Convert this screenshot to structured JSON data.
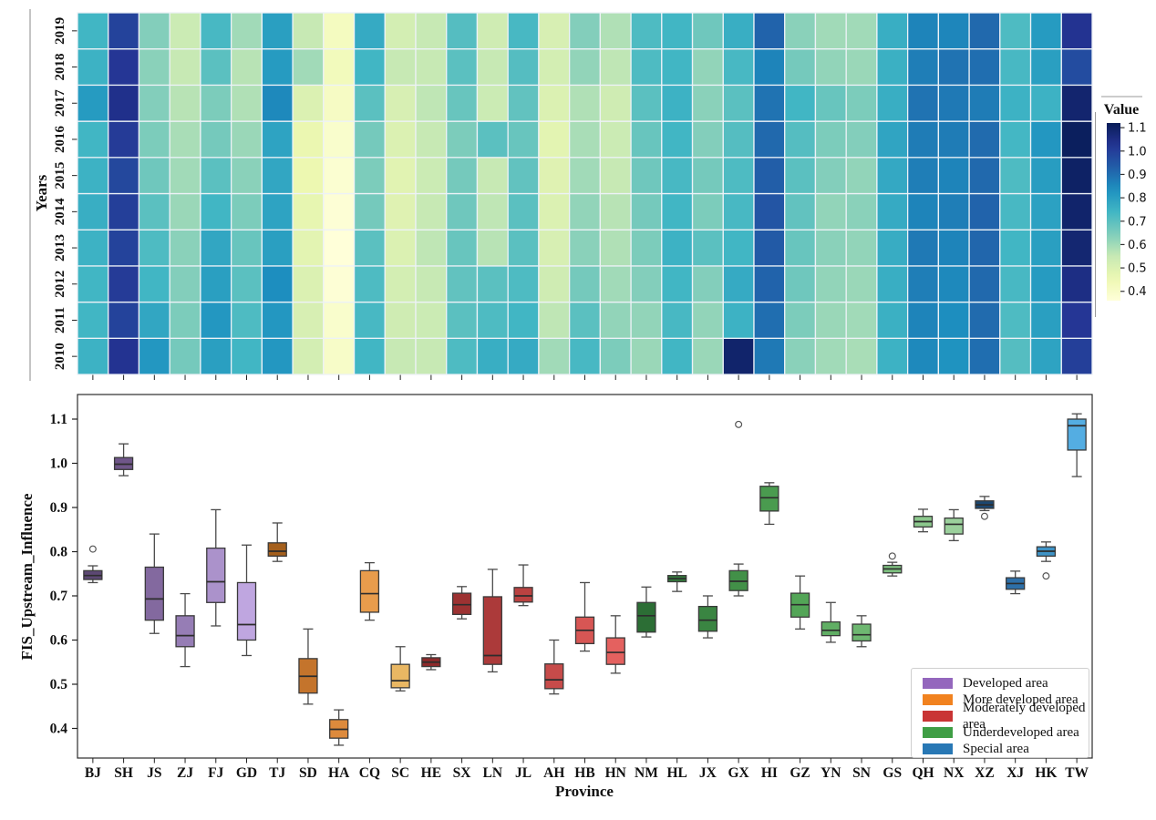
{
  "chart_data": [
    {
      "type": "heatmap",
      "ylabel": "Years",
      "years": [
        "2010",
        "2011",
        "2012",
        "2013",
        "2014",
        "2015",
        "2016",
        "2017",
        "2018",
        "2019"
      ],
      "columns": [
        "BJ",
        "SH",
        "JS",
        "ZJ",
        "FJ",
        "GD",
        "TJ",
        "SD",
        "HA",
        "CQ",
        "SC",
        "HE",
        "SX",
        "LN",
        "JL",
        "AH",
        "HB",
        "HN",
        "NM",
        "HL",
        "JX",
        "GX",
        "HI",
        "GZ",
        "YN",
        "SN",
        "GS",
        "QH",
        "NX",
        "XZ",
        "XJ",
        "HK",
        "TW"
      ],
      "colorbar": {
        "title": "Value",
        "ticks": [
          1.1,
          1.0,
          0.9,
          0.8,
          0.7,
          0.6,
          0.5,
          0.4
        ],
        "vmin": 0.36,
        "vmax": 1.12,
        "colormap": "YlGnBu",
        "anchors": [
          [
            0,
            "#ffffd9"
          ],
          [
            0.125,
            "#edf8b1"
          ],
          [
            0.25,
            "#c7e9b4"
          ],
          [
            0.375,
            "#7fcdbb"
          ],
          [
            0.5,
            "#41b6c4"
          ],
          [
            0.625,
            "#1d91c0"
          ],
          [
            0.75,
            "#225ea8"
          ],
          [
            0.875,
            "#253494"
          ],
          [
            1,
            "#081d58"
          ]
        ]
      },
      "values_by_province": [
        [
          0.75,
          0.74,
          0.74,
          0.75,
          0.76,
          0.75,
          0.74,
          0.81,
          0.75,
          0.74
        ],
        [
          1.03,
          0.99,
          1.01,
          0.99,
          1.0,
          0.98,
          1.01,
          1.04,
          1.02,
          0.99
        ],
        [
          0.82,
          0.78,
          0.74,
          0.72,
          0.7,
          0.67,
          0.65,
          0.64,
          0.63,
          0.64
        ],
        [
          0.66,
          0.65,
          0.64,
          0.63,
          0.61,
          0.6,
          0.59,
          0.57,
          0.55,
          0.54
        ],
        [
          0.8,
          0.82,
          0.8,
          0.78,
          0.74,
          0.7,
          0.66,
          0.65,
          0.7,
          0.73
        ],
        [
          0.74,
          0.72,
          0.7,
          0.68,
          0.65,
          0.63,
          0.61,
          0.58,
          0.57,
          0.6
        ],
        [
          0.82,
          0.82,
          0.84,
          0.8,
          0.79,
          0.78,
          0.79,
          0.85,
          0.81,
          0.8
        ],
        [
          0.52,
          0.51,
          0.5,
          0.48,
          0.47,
          0.455,
          0.46,
          0.5,
          0.6,
          0.55
        ],
        [
          0.4,
          0.39,
          0.37,
          0.36,
          0.37,
          0.38,
          0.39,
          0.41,
          0.43,
          0.42
        ],
        [
          0.74,
          0.73,
          0.72,
          0.7,
          0.66,
          0.65,
          0.66,
          0.7,
          0.74,
          0.77
        ],
        [
          0.55,
          0.53,
          0.52,
          0.5,
          0.49,
          0.485,
          0.5,
          0.51,
          0.55,
          0.52
        ],
        [
          0.55,
          0.54,
          0.55,
          0.56,
          0.55,
          0.54,
          0.55,
          0.56,
          0.55,
          0.55
        ],
        [
          0.72,
          0.7,
          0.69,
          0.68,
          0.67,
          0.66,
          0.65,
          0.68,
          0.7,
          0.71
        ],
        [
          0.76,
          0.72,
          0.7,
          0.57,
          0.56,
          0.55,
          0.7,
          0.54,
          0.55,
          0.53
        ],
        [
          0.77,
          0.74,
          0.72,
          0.7,
          0.7,
          0.69,
          0.68,
          0.69,
          0.71,
          0.73
        ],
        [
          0.6,
          0.56,
          0.53,
          0.51,
          0.5,
          0.49,
          0.48,
          0.5,
          0.52,
          0.51
        ],
        [
          0.73,
          0.7,
          0.66,
          0.63,
          0.62,
          0.6,
          0.59,
          0.58,
          0.62,
          0.64
        ],
        [
          0.65,
          0.62,
          0.6,
          0.58,
          0.57,
          0.55,
          0.54,
          0.53,
          0.56,
          0.58
        ],
        [
          0.61,
          0.62,
          0.64,
          0.65,
          0.66,
          0.67,
          0.68,
          0.7,
          0.72,
          0.72
        ],
        [
          0.74,
          0.73,
          0.74,
          0.75,
          0.74,
          0.73,
          0.74,
          0.75,
          0.74,
          0.74
        ],
        [
          0.61,
          0.62,
          0.64,
          0.7,
          0.65,
          0.66,
          0.64,
          0.63,
          0.62,
          0.67
        ],
        [
          1.09,
          0.75,
          0.77,
          0.74,
          0.73,
          0.72,
          0.71,
          0.7,
          0.73,
          0.76
        ],
        [
          0.88,
          0.9,
          0.92,
          0.94,
          0.95,
          0.93,
          0.91,
          0.89,
          0.86,
          0.92
        ],
        [
          0.63,
          0.65,
          0.67,
          0.68,
          0.69,
          0.7,
          0.71,
          0.74,
          0.66,
          0.63
        ],
        [
          0.6,
          0.61,
          0.62,
          0.63,
          0.62,
          0.64,
          0.65,
          0.68,
          0.62,
          0.6
        ],
        [
          0.59,
          0.6,
          0.61,
          0.62,
          0.63,
          0.62,
          0.64,
          0.65,
          0.61,
          0.6
        ],
        [
          0.75,
          0.755,
          0.76,
          0.765,
          0.77,
          0.775,
          0.785,
          0.76,
          0.755,
          0.76
        ],
        [
          0.85,
          0.86,
          0.87,
          0.88,
          0.86,
          0.87,
          0.875,
          0.89,
          0.87,
          0.86
        ],
        [
          0.83,
          0.84,
          0.85,
          0.86,
          0.87,
          0.86,
          0.875,
          0.88,
          0.89,
          0.855
        ],
        [
          0.9,
          0.905,
          0.91,
          0.915,
          0.92,
          0.91,
          0.905,
          0.875,
          0.9,
          0.91
        ],
        [
          0.71,
          0.72,
          0.73,
          0.74,
          0.73,
          0.72,
          0.735,
          0.75,
          0.73,
          0.72
        ],
        [
          0.79,
          0.8,
          0.81,
          0.8,
          0.795,
          0.805,
          0.82,
          0.75,
          0.8,
          0.81
        ],
        [
          1.0,
          1.02,
          1.05,
          1.08,
          1.09,
          1.1,
          1.11,
          1.085,
          0.97,
          1.03
        ]
      ]
    },
    {
      "type": "box",
      "xlabel": "Province",
      "ylabel": "FIS_Upstream_Influence",
      "yticks": [
        0.4,
        0.5,
        0.6,
        0.7,
        0.8,
        0.9,
        1.0,
        1.1
      ],
      "ylim": [
        0.33,
        1.16
      ],
      "categories": [
        "BJ",
        "SH",
        "JS",
        "ZJ",
        "FJ",
        "GD",
        "TJ",
        "SD",
        "HA",
        "CQ",
        "SC",
        "HE",
        "SX",
        "LN",
        "JL",
        "AH",
        "HB",
        "HN",
        "NM",
        "HL",
        "JX",
        "GX",
        "HI",
        "GZ",
        "YN",
        "SN",
        "GS",
        "QH",
        "NX",
        "XZ",
        "XJ",
        "HK",
        "TW"
      ],
      "legend": [
        {
          "label": "Developed area",
          "color": "#9467bd"
        },
        {
          "label": "More developed area",
          "color": "#f1821f"
        },
        {
          "label": "Moderately developed area",
          "color": "#c93434"
        },
        {
          "label": "Underdeveloped area",
          "color": "#3f9e45"
        },
        {
          "label": "Special area",
          "color": "#2878b5"
        }
      ],
      "boxes": [
        {
          "code": "BJ",
          "group": "Developed area",
          "color": "#5c4873",
          "low": 0.73,
          "q1": 0.737,
          "median": 0.746,
          "q3": 0.757,
          "high": 0.768,
          "outliers": [
            0.806
          ]
        },
        {
          "code": "SH",
          "group": "Developed area",
          "color": "#6f5689",
          "low": 0.972,
          "q1": 0.986,
          "median": 0.998,
          "q3": 1.013,
          "high": 1.044,
          "outliers": []
        },
        {
          "code": "JS",
          "group": "Developed area",
          "color": "#83699f",
          "low": 0.615,
          "q1": 0.645,
          "median": 0.693,
          "q3": 0.765,
          "high": 0.84,
          "outliers": []
        },
        {
          "code": "ZJ",
          "group": "Developed area",
          "color": "#967db5",
          "low": 0.54,
          "q1": 0.585,
          "median": 0.61,
          "q3": 0.655,
          "high": 0.705,
          "outliers": []
        },
        {
          "code": "FJ",
          "group": "Developed area",
          "color": "#ab92cb",
          "low": 0.632,
          "q1": 0.685,
          "median": 0.732,
          "q3": 0.808,
          "high": 0.895,
          "outliers": []
        },
        {
          "code": "GD",
          "group": "Developed area",
          "color": "#bfa6e0",
          "low": 0.565,
          "q1": 0.6,
          "median": 0.635,
          "q3": 0.73,
          "high": 0.815,
          "outliers": []
        },
        {
          "code": "TJ",
          "group": "More developed area",
          "color": "#a5601d",
          "low": 0.778,
          "q1": 0.79,
          "median": 0.801,
          "q3": 0.82,
          "high": 0.865,
          "outliers": []
        },
        {
          "code": "SD",
          "group": "More developed area",
          "color": "#c4742c",
          "low": 0.455,
          "q1": 0.48,
          "median": 0.518,
          "q3": 0.558,
          "high": 0.625,
          "outliers": []
        },
        {
          "code": "HA",
          "group": "More developed area",
          "color": "#dd8a3c",
          "low": 0.362,
          "q1": 0.378,
          "median": 0.398,
          "q3": 0.42,
          "high": 0.442,
          "outliers": []
        },
        {
          "code": "CQ",
          "group": "More developed area",
          "color": "#e89c4c",
          "low": 0.645,
          "q1": 0.663,
          "median": 0.705,
          "q3": 0.757,
          "high": 0.775,
          "outliers": []
        },
        {
          "code": "SC",
          "group": "More developed area",
          "color": "#e9b763",
          "low": 0.485,
          "q1": 0.492,
          "median": 0.508,
          "q3": 0.545,
          "high": 0.585,
          "outliers": []
        },
        {
          "code": "HE",
          "group": "Moderately developed area",
          "color": "#8f2a2b",
          "low": 0.533,
          "q1": 0.54,
          "median": 0.55,
          "q3": 0.56,
          "high": 0.567,
          "outliers": []
        },
        {
          "code": "SX",
          "group": "Moderately developed area",
          "color": "#9d3232",
          "low": 0.648,
          "q1": 0.658,
          "median": 0.68,
          "q3": 0.706,
          "high": 0.721,
          "outliers": []
        },
        {
          "code": "LN",
          "group": "Moderately developed area",
          "color": "#ac3a3a",
          "low": 0.528,
          "q1": 0.545,
          "median": 0.565,
          "q3": 0.698,
          "high": 0.76,
          "outliers": []
        },
        {
          "code": "JL",
          "group": "Moderately developed area",
          "color": "#ba4241",
          "low": 0.678,
          "q1": 0.686,
          "median": 0.7,
          "q3": 0.719,
          "high": 0.77,
          "outliers": []
        },
        {
          "code": "AH",
          "group": "Moderately developed area",
          "color": "#c74b4a",
          "low": 0.478,
          "q1": 0.49,
          "median": 0.51,
          "q3": 0.546,
          "high": 0.6,
          "outliers": []
        },
        {
          "code": "HB",
          "group": "Moderately developed area",
          "color": "#d75654",
          "low": 0.575,
          "q1": 0.592,
          "median": 0.622,
          "q3": 0.652,
          "high": 0.73,
          "outliers": []
        },
        {
          "code": "HN",
          "group": "Moderately developed area",
          "color": "#e4615f",
          "low": 0.525,
          "q1": 0.545,
          "median": 0.572,
          "q3": 0.605,
          "high": 0.655,
          "outliers": []
        },
        {
          "code": "NM",
          "group": "Underdeveloped area",
          "color": "#2c6e35",
          "low": 0.607,
          "q1": 0.618,
          "median": 0.655,
          "q3": 0.685,
          "high": 0.72,
          "outliers": []
        },
        {
          "code": "HL",
          "group": "Underdeveloped area",
          "color": "#33793b",
          "low": 0.71,
          "q1": 0.732,
          "median": 0.739,
          "q3": 0.746,
          "high": 0.754,
          "outliers": []
        },
        {
          "code": "JX",
          "group": "Underdeveloped area",
          "color": "#3a8542",
          "low": 0.605,
          "q1": 0.62,
          "median": 0.645,
          "q3": 0.676,
          "high": 0.7,
          "outliers": []
        },
        {
          "code": "GX",
          "group": "Underdeveloped area",
          "color": "#429048",
          "low": 0.7,
          "q1": 0.712,
          "median": 0.733,
          "q3": 0.757,
          "high": 0.772,
          "outliers": [
            1.088
          ]
        },
        {
          "code": "HI",
          "group": "Underdeveloped area",
          "color": "#4a9b4f",
          "low": 0.862,
          "q1": 0.892,
          "median": 0.922,
          "q3": 0.948,
          "high": 0.956,
          "outliers": []
        },
        {
          "code": "GZ",
          "group": "Underdeveloped area",
          "color": "#53a557",
          "low": 0.625,
          "q1": 0.652,
          "median": 0.68,
          "q3": 0.706,
          "high": 0.745,
          "outliers": []
        },
        {
          "code": "YN",
          "group": "Underdeveloped area",
          "color": "#60ae64",
          "low": 0.595,
          "q1": 0.61,
          "median": 0.622,
          "q3": 0.641,
          "high": 0.685,
          "outliers": []
        },
        {
          "code": "SN",
          "group": "Underdeveloped area",
          "color": "#6eb771",
          "low": 0.585,
          "q1": 0.598,
          "median": 0.612,
          "q3": 0.636,
          "high": 0.655,
          "outliers": []
        },
        {
          "code": "GS",
          "group": "Underdeveloped area",
          "color": "#7dc07f",
          "low": 0.745,
          "q1": 0.752,
          "median": 0.761,
          "q3": 0.769,
          "high": 0.776,
          "outliers": [
            0.79
          ]
        },
        {
          "code": "QH",
          "group": "Underdeveloped area",
          "color": "#8cc88d",
          "low": 0.845,
          "q1": 0.856,
          "median": 0.868,
          "q3": 0.88,
          "high": 0.896,
          "outliers": []
        },
        {
          "code": "NX",
          "group": "Underdeveloped area",
          "color": "#9bd09c",
          "low": 0.825,
          "q1": 0.84,
          "median": 0.862,
          "q3": 0.876,
          "high": 0.895,
          "outliers": []
        },
        {
          "code": "XZ",
          "group": "Special area",
          "color": "#1b4771",
          "low": 0.893,
          "q1": 0.898,
          "median": 0.906,
          "q3": 0.915,
          "high": 0.925,
          "outliers": [
            0.88
          ]
        },
        {
          "code": "XJ",
          "group": "Special area",
          "color": "#2d6fa8",
          "low": 0.705,
          "q1": 0.715,
          "median": 0.728,
          "q3": 0.741,
          "high": 0.756,
          "outliers": []
        },
        {
          "code": "HK",
          "group": "Special area",
          "color": "#3e93c6",
          "low": 0.778,
          "q1": 0.79,
          "median": 0.801,
          "q3": 0.811,
          "high": 0.822,
          "outliers": [
            0.745
          ]
        },
        {
          "code": "TW",
          "group": "Special area",
          "color": "#54ade2",
          "low": 0.97,
          "q1": 1.03,
          "median": 1.085,
          "q3": 1.1,
          "high": 1.112,
          "outliers": []
        }
      ]
    }
  ]
}
